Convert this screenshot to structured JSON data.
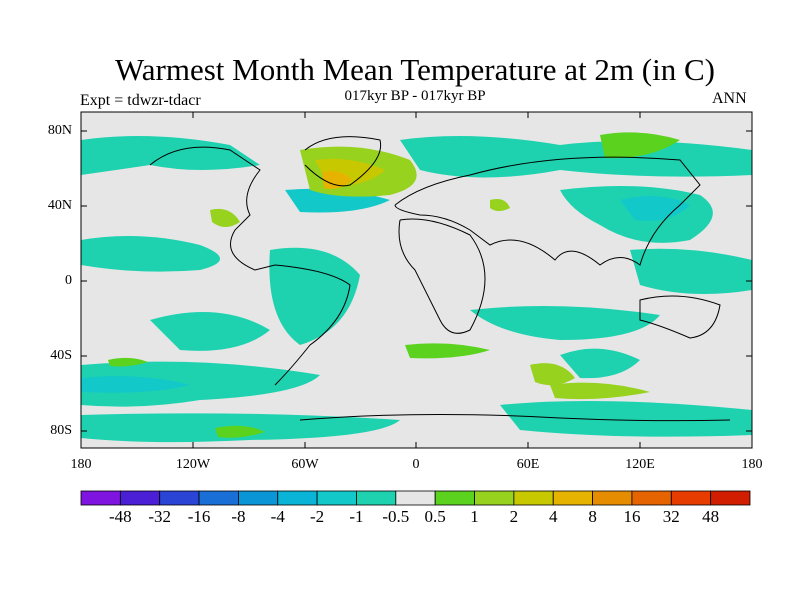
{
  "header": {
    "title": "Warmest Month Mean Temperature at 2m (in C)",
    "subtitle": "017kyr BP - 017kyr BP",
    "experiment": "Expt = tdwzr-tdacr",
    "period": "ANN"
  },
  "map": {
    "projection": "cylindrical equidistant",
    "background_color": "#e6e6e6",
    "lat_tick_labels": [
      "80N",
      "40N",
      "0",
      "40S",
      "80S"
    ],
    "lon_tick_labels": [
      "180",
      "120W",
      "60W",
      "0",
      "60E",
      "120E",
      "180"
    ]
  },
  "colorbar": {
    "labels": [
      "-48",
      "-32",
      "-16",
      "-8",
      "-4",
      "-2",
      "-1",
      "-0.5",
      "0.5",
      "1",
      "2",
      "4",
      "8",
      "16",
      "32",
      "48"
    ],
    "colors": [
      "#7f14e0",
      "#4a1fd6",
      "#2a44d6",
      "#1a6fd6",
      "#0a96d6",
      "#0ab4d6",
      "#12c8c8",
      "#1ed2b0",
      "#e6e6e6",
      "#5ad21e",
      "#96d21e",
      "#c8c800",
      "#e6b400",
      "#e68c00",
      "#e66400",
      "#e63c00",
      "#d21e00"
    ]
  }
}
